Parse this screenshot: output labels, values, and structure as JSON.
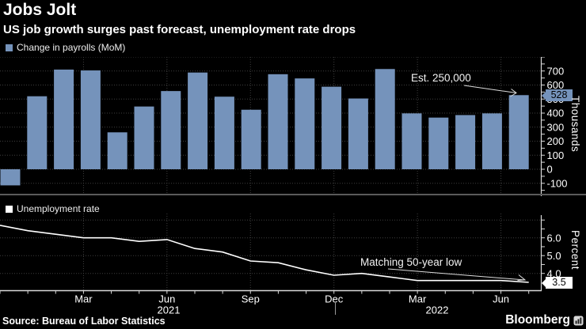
{
  "header": {
    "title": "Jobs Jolt",
    "subtitle": "US job growth surges past forecast, unemployment rate drops"
  },
  "source": "Source: Bureau of Labor Statistics",
  "brand": {
    "name": "Bloomberg"
  },
  "colors": {
    "background": "#000000",
    "bar": "#7593BB",
    "line": "#FFFFFF",
    "grid": "#3E3E3E",
    "axis": "#D9D9D9",
    "annotation_arrow": "#DDDDDD",
    "badge_text": "#000000",
    "divider": "#5A5A5A"
  },
  "xaxis": {
    "month_labels": [
      "Mar",
      "Jun",
      "Sep",
      "Dec",
      "Mar",
      "Jun"
    ],
    "year_labels": [
      "2021",
      "2022"
    ]
  },
  "chart_data": [
    {
      "type": "bar",
      "legend": "Change in payrolls (MoM)",
      "unit": "Thousands",
      "categories": [
        "Dec 2020",
        "Jan 2021",
        "Feb 2021",
        "Mar 2021",
        "Apr 2021",
        "May 2021",
        "Jun 2021",
        "Jul 2021",
        "Aug 2021",
        "Sep 2021",
        "Oct 2021",
        "Nov 2021",
        "Dec 2021",
        "Jan 2022",
        "Feb 2022",
        "Mar 2022",
        "Apr 2022",
        "May 2022",
        "Jun 2022",
        "Jul 2022"
      ],
      "values": [
        -115,
        520,
        710,
        704,
        263,
        447,
        557,
        689,
        517,
        424,
        677,
        647,
        588,
        504,
        714,
        398,
        368,
        386,
        398,
        528
      ],
      "ylim": [
        -150,
        800
      ],
      "yticks": [
        700,
        600,
        500,
        400,
        300,
        200,
        100,
        0,
        -100
      ],
      "grid": "dotted",
      "legend_position": "top-left",
      "current_value_label": "528",
      "annotation": "Est. 250,000",
      "bar_color": "#7593BB"
    },
    {
      "type": "line",
      "legend": "Unemployment rate",
      "unit": "Percent",
      "categories": [
        "Dec 2020",
        "Jan 2021",
        "Feb 2021",
        "Mar 2021",
        "Apr 2021",
        "May 2021",
        "Jun 2021",
        "Jul 2021",
        "Aug 2021",
        "Sep 2021",
        "Oct 2021",
        "Nov 2021",
        "Dec 2021",
        "Jan 2022",
        "Feb 2022",
        "Mar 2022",
        "Apr 2022",
        "May 2022",
        "Jun 2022",
        "Jul 2022"
      ],
      "values": [
        6.7,
        6.4,
        6.2,
        6.0,
        6.0,
        5.8,
        5.9,
        5.4,
        5.2,
        4.7,
        4.6,
        4.2,
        3.9,
        4.0,
        3.8,
        3.6,
        3.6,
        3.6,
        3.6,
        3.5
      ],
      "ylim": [
        3.0,
        7.2
      ],
      "ytick_labels": [
        "6.0",
        "5.0",
        "4.0"
      ],
      "grid": "dotted",
      "legend_position": "top-left",
      "current_value_label": "3.5",
      "annotation": "Matching 50-year low",
      "line_color": "#FFFFFF"
    }
  ]
}
